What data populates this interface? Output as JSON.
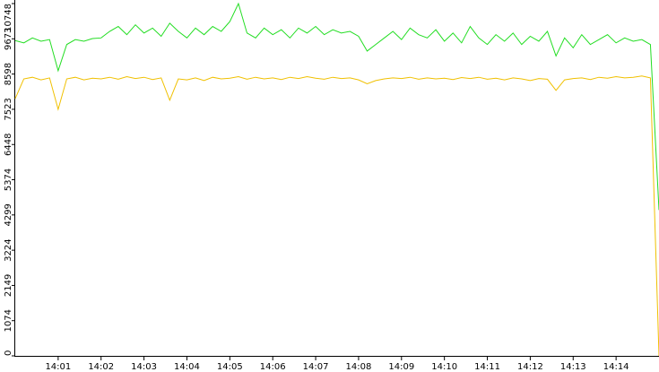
{
  "chart_data": {
    "type": "line",
    "x": [
      0,
      0.2,
      0.4,
      0.6,
      0.8,
      1,
      1.2,
      1.4,
      1.6,
      1.8,
      2,
      2.2,
      2.4,
      2.6,
      2.8,
      3,
      3.2,
      3.4,
      3.6,
      3.8,
      4,
      4.2,
      4.4,
      4.6,
      4.8,
      5,
      5.2,
      5.4,
      5.6,
      5.8,
      6,
      6.2,
      6.4,
      6.6,
      6.8,
      7,
      7.2,
      7.4,
      7.6,
      7.8,
      8,
      8.2,
      8.4,
      8.6,
      8.8,
      9,
      9.2,
      9.4,
      9.6,
      9.8,
      10,
      10.2,
      10.4,
      10.6,
      10.8,
      11,
      11.2,
      11.4,
      11.6,
      11.8,
      12,
      12.2,
      12.4,
      12.6,
      12.8,
      13,
      13.2,
      13.4,
      13.6,
      13.8,
      14,
      14.2,
      14.4,
      14.6,
      14.8,
      15
    ],
    "series": [
      {
        "color": "#22dd22",
        "values": [
          9620,
          9550,
          9700,
          9600,
          9650,
          8700,
          9500,
          9650,
          9600,
          9680,
          9700,
          9900,
          10050,
          9800,
          10100,
          9850,
          10000,
          9750,
          10150,
          9900,
          9700,
          10000,
          9800,
          10050,
          9900,
          10200,
          10748,
          9850,
          9700,
          10000,
          9800,
          9950,
          9700,
          10000,
          9850,
          10050,
          9800,
          9950,
          9850,
          9900,
          9750,
          9300,
          9500,
          9700,
          9900,
          9650,
          10000,
          9800,
          9700,
          9950,
          9600,
          9850,
          9550,
          10050,
          9700,
          9500,
          9800,
          9600,
          9850,
          9500,
          9750,
          9600,
          9900,
          9150,
          9700,
          9400,
          9800,
          9500,
          9650,
          9800,
          9550,
          9700,
          9600,
          9650,
          9500,
          4450
        ]
      },
      {
        "color": "#f0c000",
        "values": [
          7850,
          8450,
          8500,
          8420,
          8480,
          7520,
          8450,
          8500,
          8420,
          8470,
          8450,
          8500,
          8440,
          8520,
          8460,
          8500,
          8430,
          8480,
          7800,
          8450,
          8420,
          8480,
          8400,
          8500,
          8450,
          8470,
          8520,
          8440,
          8500,
          8450,
          8480,
          8430,
          8500,
          8460,
          8520,
          8470,
          8440,
          8500,
          8460,
          8480,
          8420,
          8300,
          8400,
          8450,
          8480,
          8460,
          8500,
          8440,
          8480,
          8450,
          8470,
          8430,
          8490,
          8460,
          8500,
          8440,
          8470,
          8420,
          8480,
          8450,
          8400,
          8460,
          8440,
          8100,
          8420,
          8460,
          8480,
          8430,
          8500,
          8470,
          8520,
          8480,
          8500,
          8540,
          8480,
          0
        ]
      }
    ],
    "xlim": [
      0,
      15
    ],
    "xticks": [
      {
        "value": 1,
        "label": "14:01"
      },
      {
        "value": 2,
        "label": "14:02"
      },
      {
        "value": 3,
        "label": "14:03"
      },
      {
        "value": 4,
        "label": "14:04"
      },
      {
        "value": 5,
        "label": "14:05"
      },
      {
        "value": 6,
        "label": "14:06"
      },
      {
        "value": 7,
        "label": "14:07"
      },
      {
        "value": 8,
        "label": "14:08"
      },
      {
        "value": 9,
        "label": "14:09"
      },
      {
        "value": 10,
        "label": "14:10"
      },
      {
        "value": 11,
        "label": "14:11"
      },
      {
        "value": 12,
        "label": "14:12"
      },
      {
        "value": 13,
        "label": "14:13"
      },
      {
        "value": 14,
        "label": "14:14"
      }
    ],
    "ylim": [
      0,
      10748
    ],
    "yticks": [
      0,
      1074,
      2149,
      3224,
      4299,
      5374,
      6448,
      7523,
      8598,
      9673,
      10748
    ],
    "grid": false
  }
}
